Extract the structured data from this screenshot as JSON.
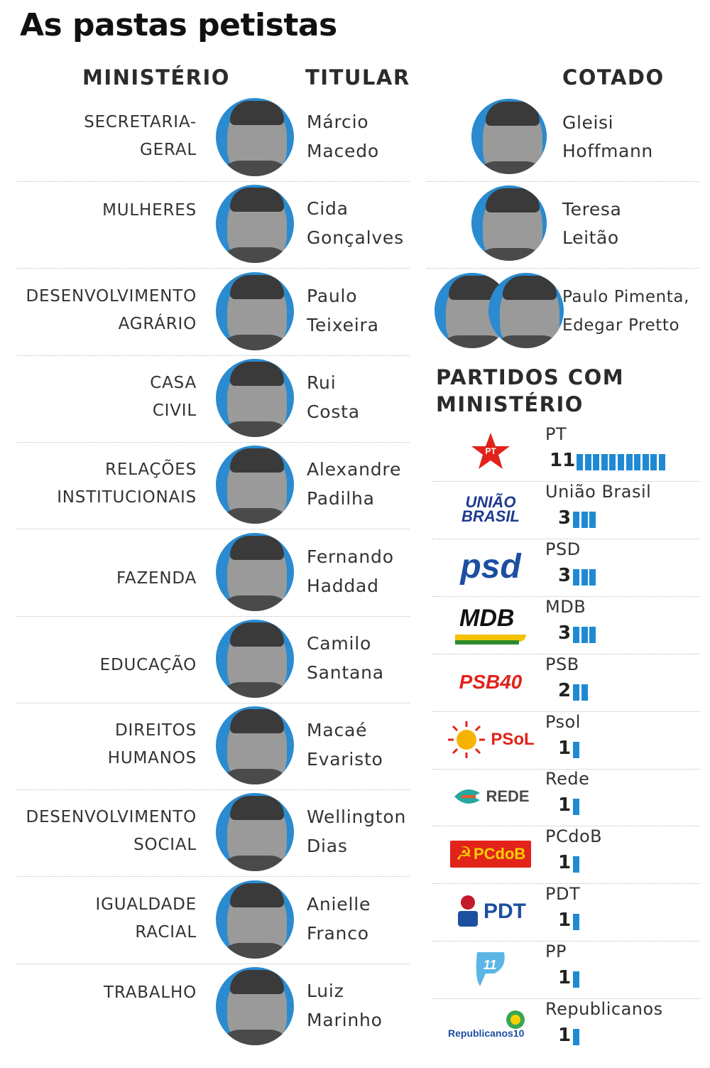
{
  "title": "As pastas petistas",
  "headers": {
    "ministry": "MINISTÉRIO",
    "holder": "TITULAR",
    "candidate": "COTADO"
  },
  "rows": [
    {
      "ministry": [
        "SECRETARIA-",
        "GERAL"
      ],
      "holder": [
        "Márcio",
        "Macedo"
      ]
    },
    {
      "ministry": [
        "MULHERES"
      ],
      "holder": [
        "Cida",
        "Gonçalves"
      ]
    },
    {
      "ministry": [
        "DESENVOLVIMENTO",
        "AGRÁRIO"
      ],
      "holder": [
        "Paulo",
        "Teixeira"
      ]
    },
    {
      "ministry": [
        "CASA",
        "CIVIL"
      ],
      "holder": [
        "Rui",
        "Costa"
      ]
    },
    {
      "ministry": [
        "RELAÇÕES",
        "INSTITUCIONAIS"
      ],
      "holder": [
        "Alexandre",
        "Padilha"
      ]
    },
    {
      "ministry": [
        "FAZENDA"
      ],
      "holder": [
        "Fernando",
        "Haddad"
      ]
    },
    {
      "ministry": [
        "EDUCAÇÃO"
      ],
      "holder": [
        "Camilo",
        "Santana"
      ]
    },
    {
      "ministry": [
        "DIREITOS",
        "HUMANOS"
      ],
      "holder": [
        "Macaé",
        "Evaristo"
      ]
    },
    {
      "ministry": [
        "DESENVOLVIMENTO",
        "SOCIAL"
      ],
      "holder": [
        "Wellington",
        "Dias"
      ]
    },
    {
      "ministry": [
        "IGUALDADE",
        "RACIAL"
      ],
      "holder": [
        "Anielle",
        "Franco"
      ]
    },
    {
      "ministry": [
        "TRABALHO"
      ],
      "holder": [
        "Luiz",
        "Marinho"
      ]
    }
  ],
  "candidates": [
    {
      "lines": [
        "Gleisi",
        "Hoffmann"
      ]
    },
    {
      "lines": [
        "Teresa",
        "Leitão"
      ]
    },
    {
      "lines": [
        "Paulo Pimenta,",
        "Edegar Pretto"
      ]
    }
  ],
  "parties_title": [
    "PARTIDOS COM",
    "MINISTÉRIO"
  ],
  "chart_data": {
    "type": "bar",
    "title": "PARTIDOS COM MINISTÉRIO",
    "categories": [
      "PT",
      "União Brasil",
      "PSD",
      "MDB",
      "PSB",
      "Psol",
      "Rede",
      "PCdoB",
      "PDT",
      "PP",
      "Republicanos"
    ],
    "values": [
      11,
      3,
      3,
      3,
      2,
      1,
      1,
      1,
      1,
      1,
      1
    ],
    "bar_color": "#1f8ad4"
  },
  "logos": {
    "pt": "PT",
    "uniao": [
      "UNIÃO",
      "BRASIL"
    ],
    "psd": "psd",
    "mdb": "MDB",
    "psb": "PSB40",
    "psol": "PSoL",
    "rede": "REDE",
    "pcdob": "PCdoB",
    "pdt": "PDT",
    "pp": "11",
    "republicanos": "Republicanos10"
  },
  "colors": {
    "accent_blue": "#1f8ad4",
    "photo_ring": "#2a8bd0",
    "pt_red": "#e2231a"
  }
}
